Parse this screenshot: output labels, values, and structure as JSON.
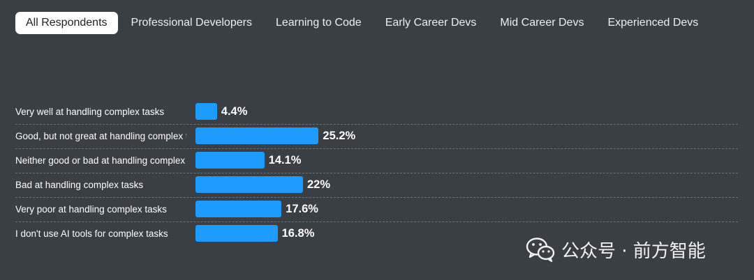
{
  "tabs": [
    {
      "label": "All Respondents",
      "active": true
    },
    {
      "label": "Professional Developers",
      "active": false
    },
    {
      "label": "Learning to Code",
      "active": false
    },
    {
      "label": "Early Career Devs",
      "active": false
    },
    {
      "label": "Mid Career Devs",
      "active": false
    },
    {
      "label": "Experienced Devs",
      "active": false
    }
  ],
  "chart_data": {
    "type": "bar",
    "orientation": "horizontal",
    "categories": [
      "Very well at handling complex tasks",
      "Good, but not great at handling complex tasks",
      "Neither good or bad at handling complex tasks",
      "Bad at handling complex tasks",
      "Very poor at handling complex tasks",
      "I don't use AI tools for complex tasks"
    ],
    "values": [
      4.4,
      25.2,
      14.1,
      22,
      17.6,
      16.8
    ],
    "value_labels": [
      "4.4%",
      "25.2%",
      "14.1%",
      "22%",
      "17.6%",
      "16.8%"
    ],
    "unit": "%",
    "xlim": [
      0,
      100
    ],
    "bar_color": "#1e9bff",
    "grid": false
  },
  "watermark": {
    "text": "公众号 · 前方智能",
    "icon": "wechat-icon"
  }
}
